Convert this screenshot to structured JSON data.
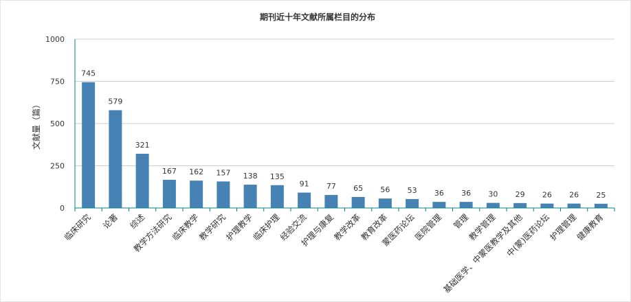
{
  "chart_data": {
    "type": "bar",
    "title": "期刊近十年文献所属栏目的分布",
    "xlabel": "",
    "ylabel": "文献量（篇）",
    "ylim": [
      0,
      1000
    ],
    "yticks": [
      "0",
      "250",
      "500",
      "750",
      "1000"
    ],
    "grid": true,
    "categories": [
      "临床研究",
      "论著",
      "综述",
      "教学方法研究",
      "临床教学",
      "教学研究",
      "护理教学",
      "临床护理",
      "经验交流",
      "护理与康复",
      "教学改革",
      "教育改革",
      "蒙医药论坛",
      "医院管理",
      "管理",
      "教学管理",
      "基础医学、中蒙医教学及其他",
      "中(蒙)医药论坛",
      "护理管理",
      "健康教育"
    ],
    "values": [
      745,
      579,
      321,
      167,
      162,
      157,
      138,
      135,
      91,
      77,
      65,
      56,
      53,
      36,
      36,
      30,
      29,
      26,
      26,
      25
    ],
    "bar_color": "#4682b4",
    "axis_color": "#008080"
  }
}
